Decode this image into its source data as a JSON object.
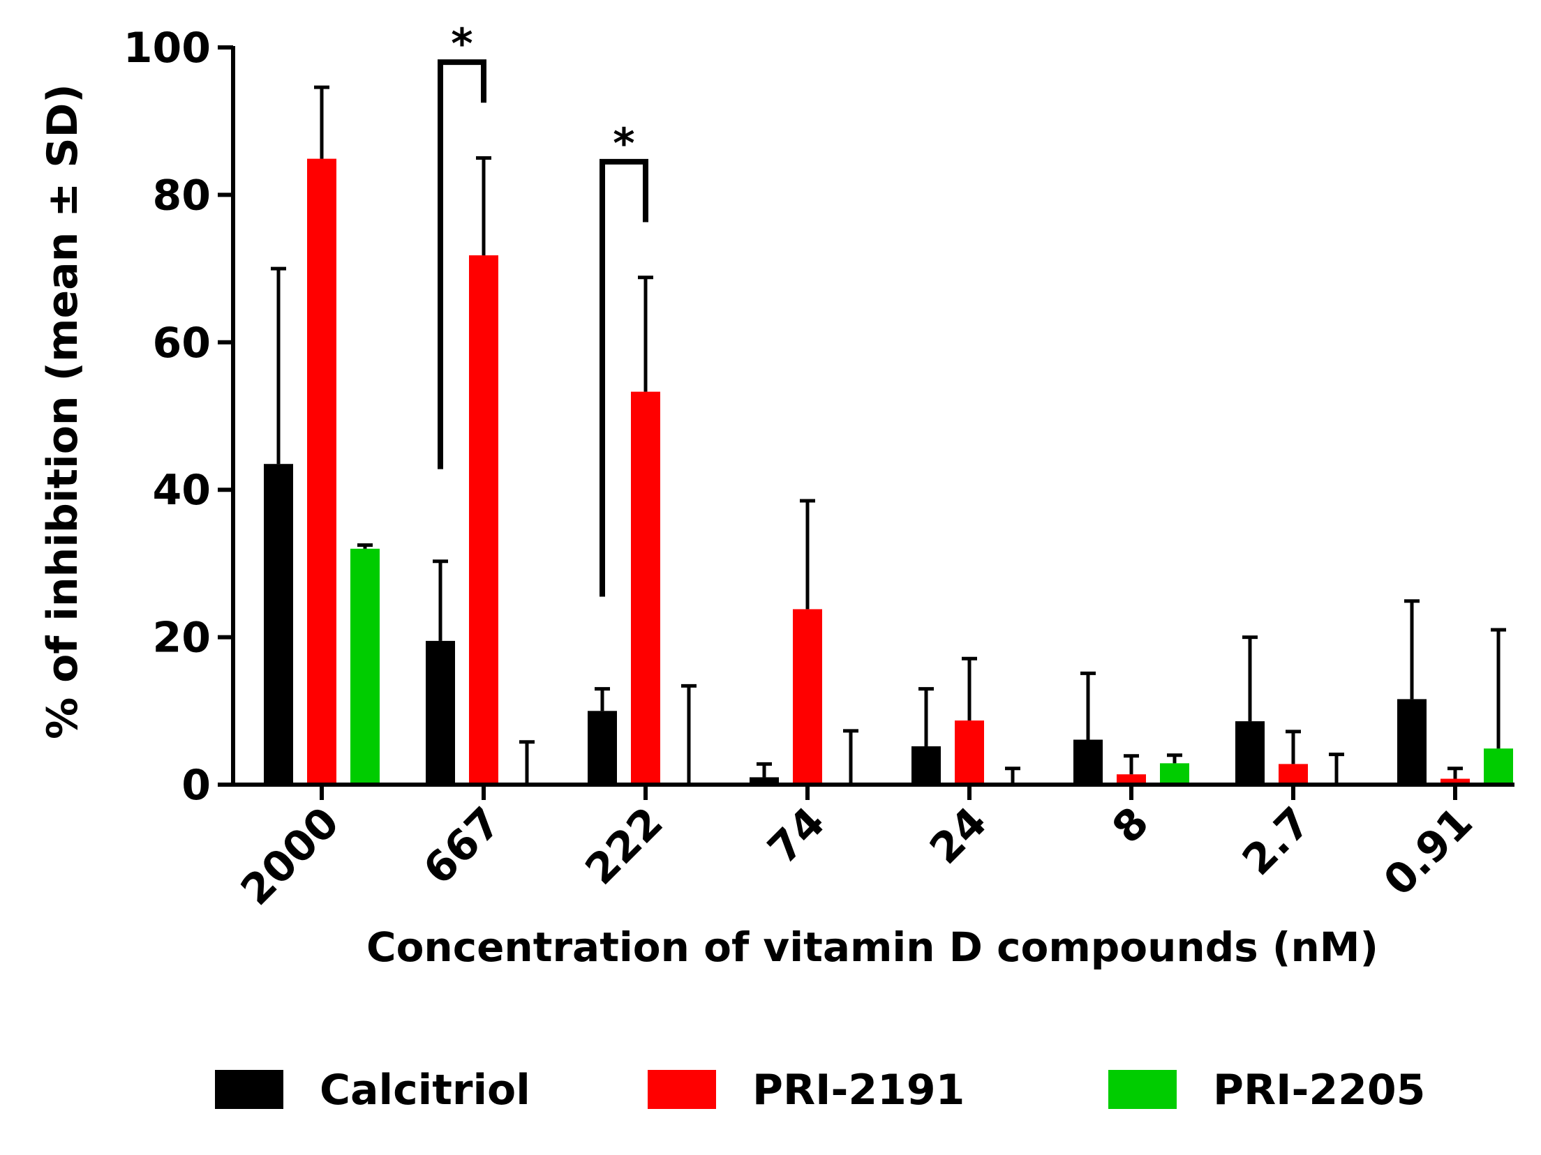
{
  "chart_data": {
    "type": "bar",
    "title": "",
    "xlabel": "Concentration of vitamin D compounds (nM)",
    "ylabel": "% of inhibition (mean ± SD)",
    "ylim": [
      0,
      100
    ],
    "yticks": [
      0,
      20,
      40,
      60,
      80,
      100
    ],
    "grid": false,
    "legend_position": "bottom",
    "categories": [
      "2000",
      "667",
      "222",
      "74",
      "24",
      "8",
      "2.7",
      "0.91"
    ],
    "series": [
      {
        "name": "Calcitriol",
        "color": "#000000",
        "values": [
          43.5,
          19.5,
          10,
          1,
          5.2,
          6.1,
          8.6,
          11.6
        ],
        "sd": [
          26.5,
          10.8,
          3,
          1.8,
          7.8,
          9,
          11.4,
          13.3
        ]
      },
      {
        "name": "PRI-2191",
        "color": "#ff0000",
        "values": [
          84.9,
          71.8,
          53.3,
          23.8,
          8.7,
          1.4,
          2.8,
          0.8
        ],
        "sd": [
          9.7,
          13.2,
          15.5,
          14.7,
          8.4,
          2.5,
          4.4,
          1.4
        ]
      },
      {
        "name": "PRI-2205",
        "color": "#00cc00",
        "values": [
          32,
          0,
          0,
          0,
          0,
          2.9,
          0,
          4.9
        ],
        "sd": [
          0.5,
          5.8,
          13.4,
          7.3,
          2.2,
          1.1,
          4.1,
          16.1
        ]
      }
    ],
    "annotations": [
      {
        "label": "*",
        "category_index": 1,
        "from_series": 0,
        "to_series": 1,
        "bracket_top": 98
      },
      {
        "label": "*",
        "category_index": 2,
        "from_series": 0,
        "to_series": 1,
        "bracket_top": 84.5
      }
    ]
  }
}
